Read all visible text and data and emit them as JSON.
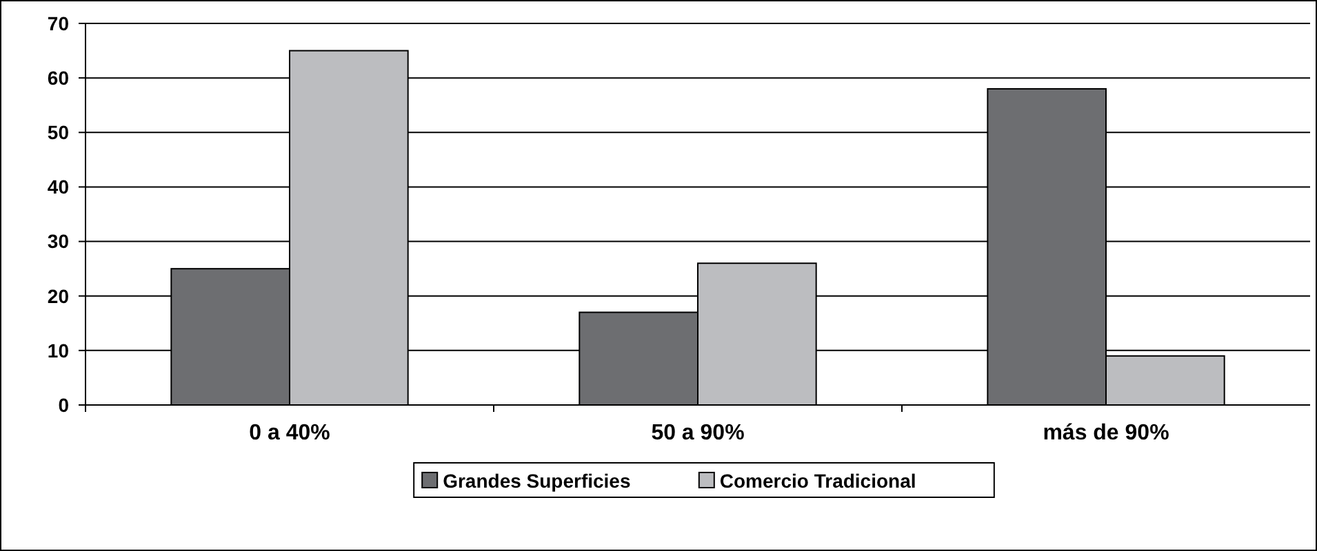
{
  "chart_data": {
    "type": "bar",
    "categories": [
      "0 a 40%",
      "50 a 90%",
      "más de 90%"
    ],
    "series": [
      {
        "name": "Grandes Superficies",
        "color": "#6d6e71",
        "values": [
          25,
          17,
          58
        ]
      },
      {
        "name": "Comercio Tradicional",
        "color": "#bcbdc0",
        "values": [
          65,
          26,
          9
        ]
      }
    ],
    "ylim": [
      0,
      70
    ],
    "yticks": [
      0,
      10,
      20,
      30,
      40,
      50,
      60,
      70
    ],
    "grid": "y",
    "legend": "bottom"
  }
}
